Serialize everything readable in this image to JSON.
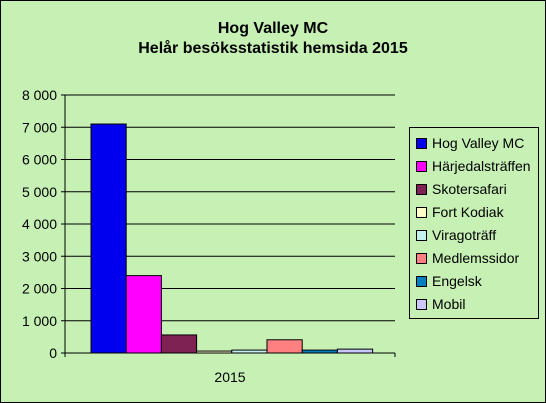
{
  "chart_data": {
    "type": "bar",
    "title": [
      "Hog Valley MC",
      "Helår besöksstatistik hemsida 2015"
    ],
    "categories": [
      "2015"
    ],
    "series": [
      {
        "name": "Hog Valley MC",
        "values": [
          7100
        ],
        "color": "#0000ee"
      },
      {
        "name": "Härjedalsträffen",
        "values": [
          2400
        ],
        "color": "#ff00ff"
      },
      {
        "name": "Skotersafari",
        "values": [
          560
        ],
        "color": "#7e2153"
      },
      {
        "name": "Fort Kodiak",
        "values": [
          60
        ],
        "color": "#ffffcc"
      },
      {
        "name": "Viragoträff",
        "values": [
          90
        ],
        "color": "#c4f0ee"
      },
      {
        "name": "Medlemssidor",
        "values": [
          410
        ],
        "color": "#ff8080"
      },
      {
        "name": "Engelsk",
        "values": [
          90
        ],
        "color": "#0080c0"
      },
      {
        "name": "Mobil",
        "values": [
          120
        ],
        "color": "#c8c8ff"
      }
    ],
    "ylim": [
      0,
      8000
    ],
    "yticks": [
      "0",
      "1 000",
      "2 000",
      "3 000",
      "4 000",
      "5 000",
      "6 000",
      "7 000",
      "8 000"
    ],
    "ytick_values": [
      0,
      1000,
      2000,
      3000,
      4000,
      5000,
      6000,
      7000,
      8000
    ],
    "grid": true,
    "legend_position": "right",
    "plot_background": "#c6f0b4"
  }
}
